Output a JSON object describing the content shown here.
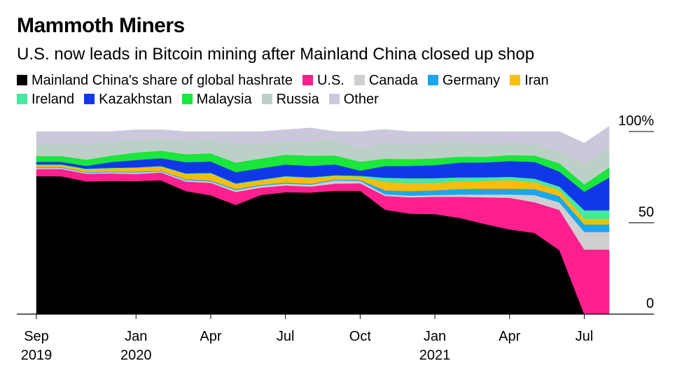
{
  "title": "Mammoth Miners",
  "subtitle": "U.S. now leads in Bitcoin mining after Mainland China closed up shop",
  "chart_data": {
    "type": "area",
    "stacked": true,
    "x": [
      "2019-09",
      "2019-10",
      "2019-11",
      "2019-12",
      "2020-01",
      "2020-02",
      "2020-03",
      "2020-04",
      "2020-05",
      "2020-06",
      "2020-07",
      "2020-08",
      "2020-09",
      "2020-10",
      "2020-11",
      "2020-12",
      "2021-01",
      "2021-02",
      "2021-03",
      "2021-04",
      "2021-05",
      "2021-06",
      "2021-07",
      "2021-08"
    ],
    "x_ticks": [
      {
        "date": "2019-09",
        "label": "Sep",
        "sublabel": "2019"
      },
      {
        "date": "2020-01",
        "label": "Jan",
        "sublabel": "2020"
      },
      {
        "date": "2020-04",
        "label": "Apr",
        "sublabel": ""
      },
      {
        "date": "2020-07",
        "label": "Jul",
        "sublabel": ""
      },
      {
        "date": "2020-10",
        "label": "Oct",
        "sublabel": ""
      },
      {
        "date": "2021-01",
        "label": "Jan",
        "sublabel": "2021"
      },
      {
        "date": "2021-04",
        "label": "Apr",
        "sublabel": ""
      },
      {
        "date": "2021-07",
        "label": "Jul",
        "sublabel": ""
      }
    ],
    "y_ticks": [
      {
        "value": 0,
        "label": "0"
      },
      {
        "value": 50,
        "label": "50"
      },
      {
        "value": 100,
        "label": "100%"
      }
    ],
    "ylim": [
      0,
      100
    ],
    "grid": false,
    "legend_position": "top",
    "series": [
      {
        "name": "Mainland China's share of global hashrate",
        "color": "#000000",
        "values": [
          75.5,
          75.5,
          72.7,
          73.0,
          72.9,
          73.3,
          67.4,
          65.1,
          59.8,
          65.2,
          66.8,
          66.6,
          67.6,
          67.6,
          57.2,
          55.0,
          54.8,
          52.7,
          49.4,
          46.4,
          44.5,
          35.0,
          0.0,
          0.0
        ]
      },
      {
        "name": "U.S.",
        "color": "#ff1f8e",
        "values": [
          4.0,
          4.0,
          4.2,
          4.1,
          3.9,
          4.3,
          5.2,
          6.8,
          7.1,
          4.1,
          3.7,
          3.3,
          3.9,
          4.1,
          7.6,
          9.0,
          9.5,
          11.6,
          14.6,
          17.3,
          16.8,
          22.1,
          35.4,
          35.4
        ]
      },
      {
        "name": "Canada",
        "color": "#cfcfcf",
        "values": [
          0.6,
          0.6,
          0.6,
          0.6,
          0.8,
          0.6,
          0.8,
          0.8,
          1.0,
          1.0,
          1.0,
          1.0,
          1.7,
          1.2,
          0.8,
          0.9,
          0.9,
          1.2,
          1.5,
          1.8,
          3.9,
          4.1,
          9.6,
          9.6
        ]
      },
      {
        "name": "Germany",
        "color": "#1aa7ee",
        "values": [
          0.4,
          0.4,
          0.4,
          0.4,
          0.5,
          0.4,
          0.5,
          0.5,
          0.6,
          0.5,
          0.6,
          0.5,
          0.5,
          0.6,
          2.2,
          2.5,
          2.6,
          3.0,
          3.2,
          3.2,
          3.3,
          3.5,
          4.1,
          4.1
        ]
      },
      {
        "name": "Iran",
        "color": "#f6bd0c",
        "values": [
          1.2,
          1.2,
          1.4,
          1.7,
          2.0,
          2.2,
          2.9,
          3.8,
          2.7,
          2.4,
          3.1,
          3.1,
          2.0,
          1.9,
          4.6,
          4.4,
          4.1,
          4.2,
          4.3,
          4.7,
          3.8,
          3.2,
          3.1,
          3.1
        ]
      },
      {
        "name": "Ireland",
        "color": "#45e8a0",
        "values": [
          0.3,
          0.3,
          0.3,
          0.3,
          0.3,
          0.3,
          0.3,
          0.4,
          0.4,
          0.4,
          0.4,
          0.4,
          0.4,
          0.4,
          2.3,
          2.6,
          2.6,
          2.2,
          1.9,
          1.8,
          1.9,
          2.0,
          4.7,
          4.7
        ]
      },
      {
        "name": "Kazakhstan",
        "color": "#1138e8",
        "values": [
          1.4,
          1.4,
          1.6,
          3.2,
          4.0,
          4.3,
          6.1,
          6.2,
          6.2,
          6.3,
          6.3,
          6.3,
          5.9,
          2.8,
          6.4,
          6.8,
          7.1,
          8.1,
          8.2,
          8.6,
          9.2,
          8.2,
          10.1,
          17.9
        ]
      },
      {
        "name": "Malaysia",
        "color": "#1ae63c",
        "values": [
          3.2,
          3.2,
          3.4,
          3.5,
          4.1,
          4.1,
          4.4,
          4.5,
          5.2,
          5.3,
          5.4,
          5.6,
          4.9,
          4.9,
          4.0,
          3.7,
          3.7,
          3.3,
          3.1,
          3.3,
          3.5,
          4.6,
          4.1,
          5.5
        ]
      },
      {
        "name": "Russia",
        "color": "#bdd0c8",
        "values": [
          7.0,
          7.0,
          8.6,
          7.7,
          7.0,
          6.7,
          7.2,
          7.1,
          10.3,
          8.1,
          7.4,
          7.9,
          8.3,
          7.5,
          8.7,
          8.4,
          8.4,
          7.7,
          7.1,
          6.7,
          6.7,
          6.8,
          11.3,
          11.3
        ]
      },
      {
        "name": "Other",
        "color": "#ccc8dc",
        "values": [
          6.4,
          6.4,
          6.8,
          5.5,
          5.5,
          4.8,
          5.2,
          4.8,
          6.7,
          6.7,
          6.3,
          7.3,
          4.8,
          9.0,
          7.4,
          6.7,
          6.3,
          6.0,
          6.7,
          6.2,
          6.4,
          10.5,
          11.3,
          11.3
        ]
      }
    ]
  }
}
